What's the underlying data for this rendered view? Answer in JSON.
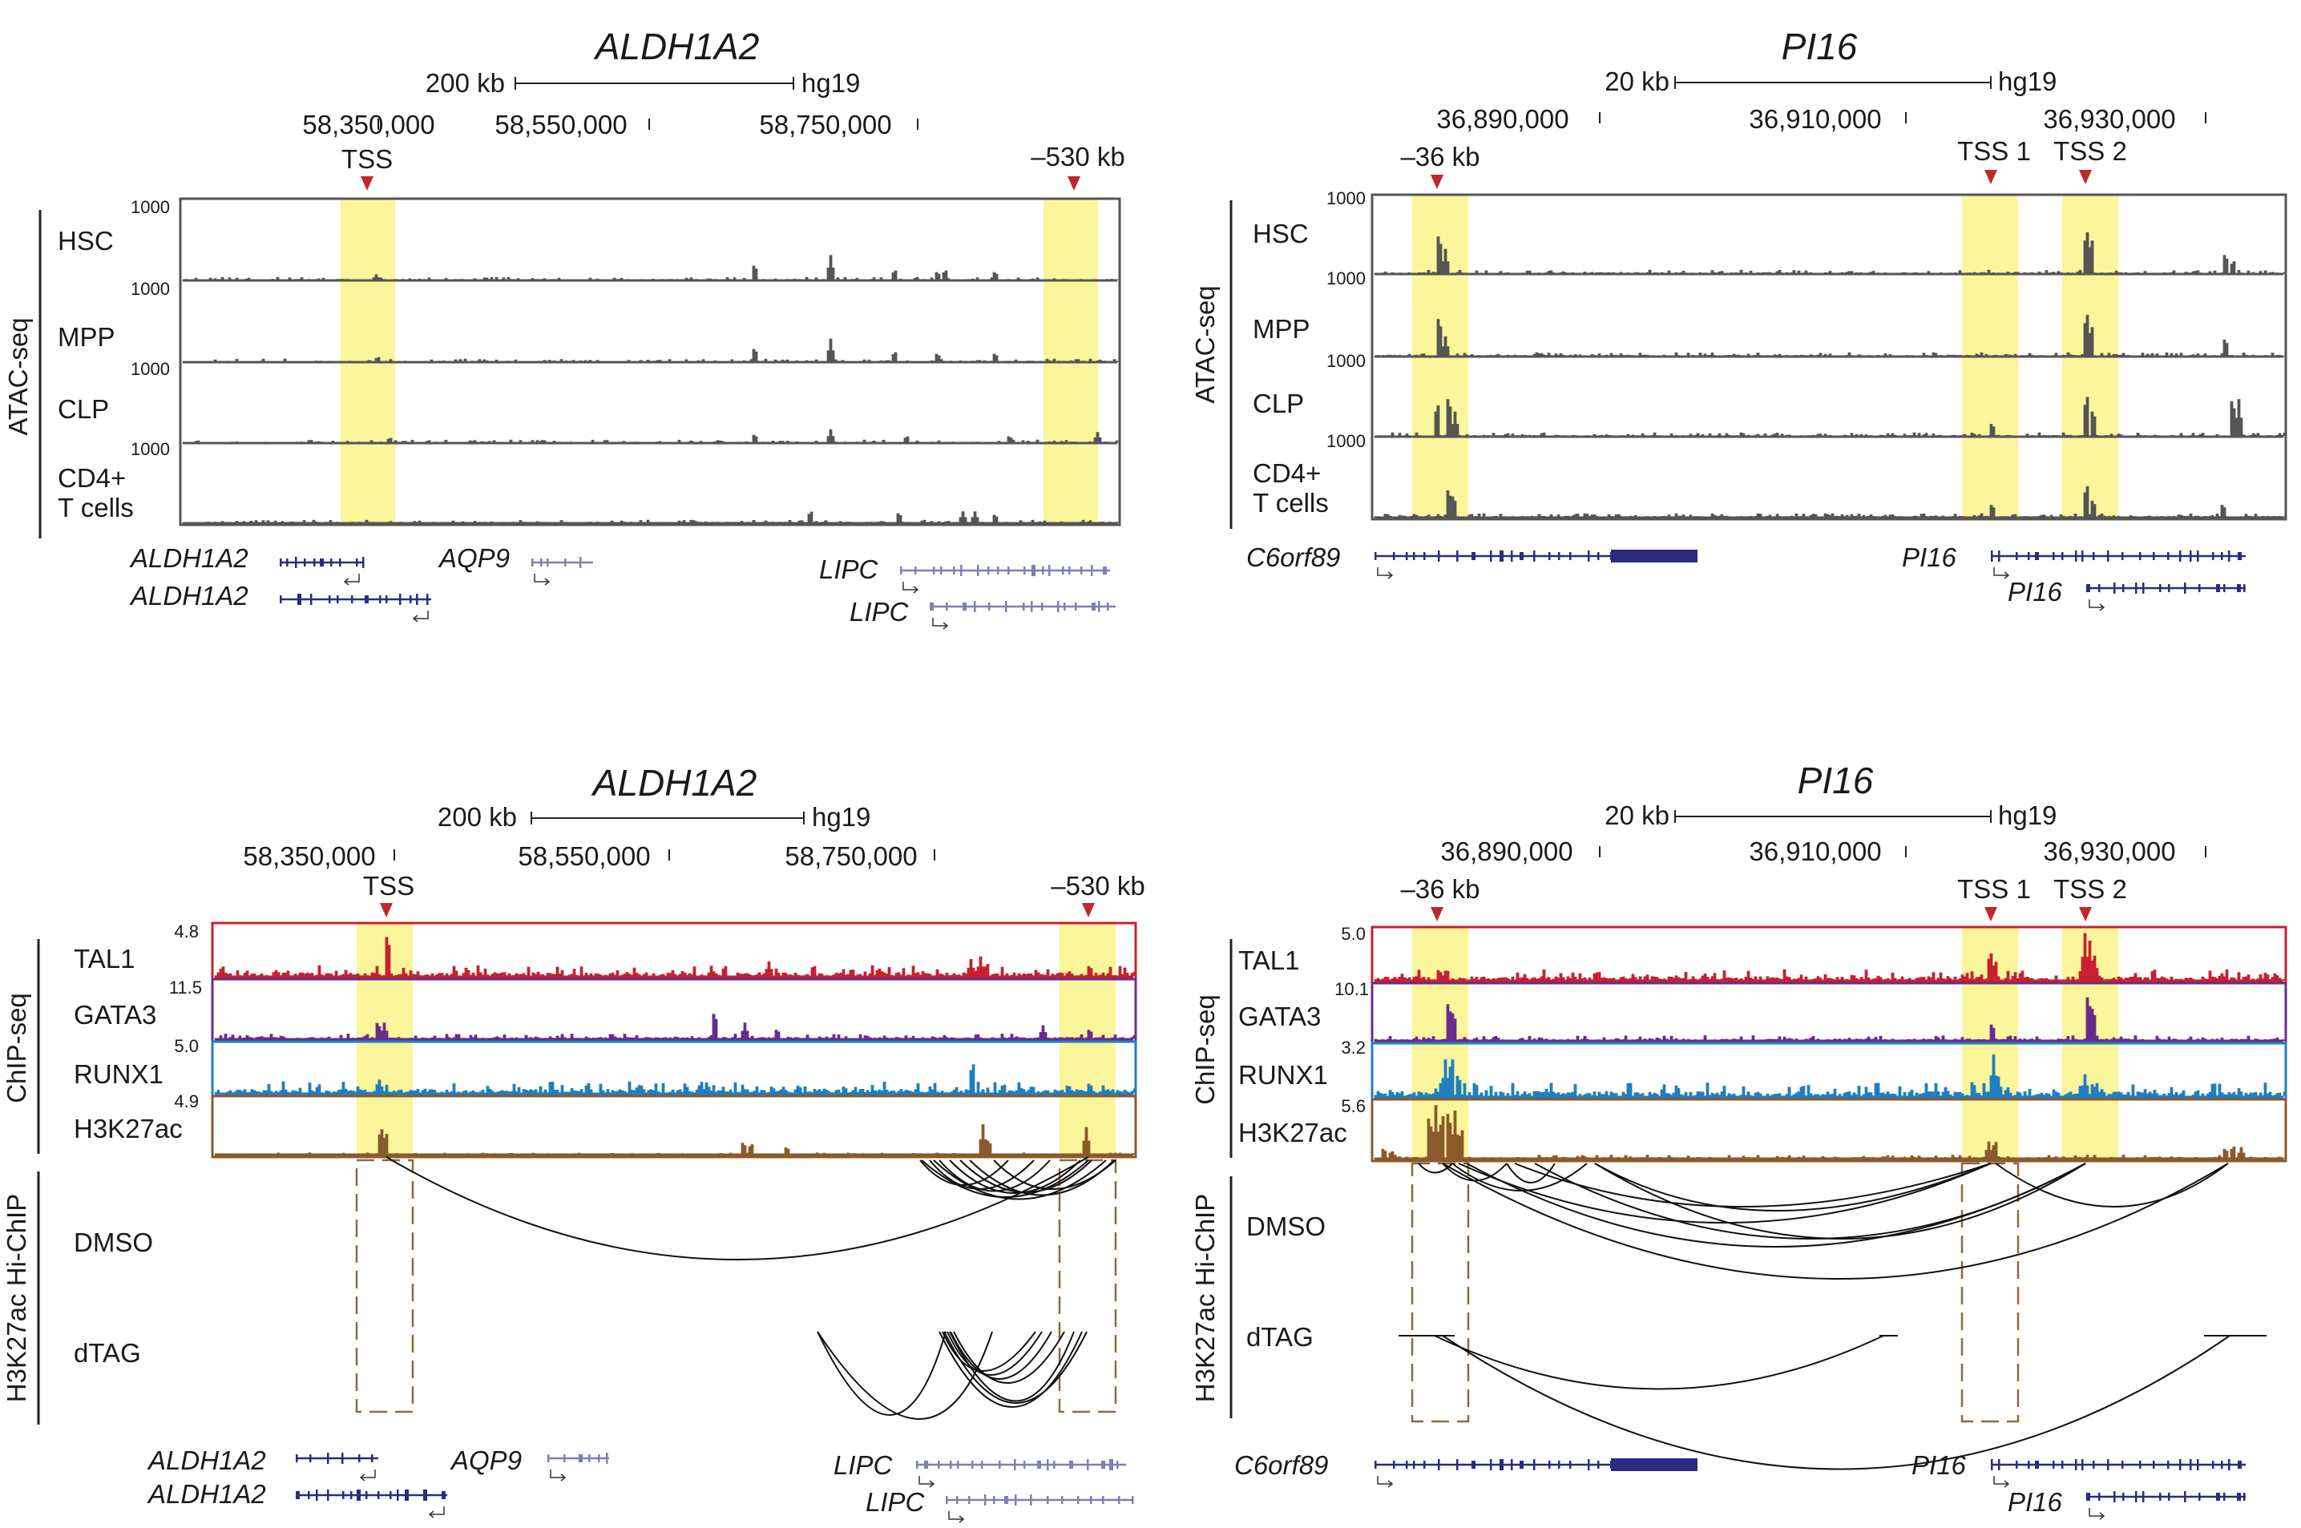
{
  "panels": [
    {
      "id": "tl",
      "title": "ALDH1A2",
      "scalebar": {
        "size": "200 kb",
        "genome": "hg19"
      },
      "coords": [
        "58,350,000",
        "58,550,000",
        "58,750,000"
      ],
      "markers": [
        "TSS",
        "–530 kb"
      ],
      "group_label": "ATAC-seq",
      "tracks": [
        {
          "name": "HSC",
          "scale": "1000"
        },
        {
          "name": "MPP",
          "scale": "1000"
        },
        {
          "name": "CLP",
          "scale": "1000"
        },
        {
          "name": "CD4+\nT cells",
          "scale": "1000"
        }
      ],
      "genes": [
        "ALDH1A2",
        "ALDH1A2",
        "AQP9",
        "LIPC",
        "LIPC"
      ]
    },
    {
      "id": "tr",
      "title": "PI16",
      "scalebar": {
        "size": "20 kb",
        "genome": "hg19"
      },
      "coords": [
        "36,890,000",
        "36,910,000",
        "36,930,000"
      ],
      "markers": [
        "–36 kb",
        "TSS 1",
        "TSS 2"
      ],
      "group_label": "ATAC-seq",
      "tracks": [
        {
          "name": "HSC",
          "scale": "1000"
        },
        {
          "name": "MPP",
          "scale": "1000"
        },
        {
          "name": "CLP",
          "scale": "1000"
        },
        {
          "name": "CD4+\nT cells",
          "scale": "1000"
        }
      ],
      "genes": [
        "C6orf89",
        "PI16",
        "PI16"
      ]
    },
    {
      "id": "bl",
      "title": "ALDH1A2",
      "scalebar": {
        "size": "200 kb",
        "genome": "hg19"
      },
      "coords": [
        "58,350,000",
        "58,550,000",
        "58,750,000"
      ],
      "markers": [
        "TSS",
        "–530 kb"
      ],
      "group_label": "ChIP-seq",
      "tracks": [
        {
          "name": "TAL1",
          "scale": "4.8"
        },
        {
          "name": "GATA3",
          "scale": "11.5"
        },
        {
          "name": "RUNX1",
          "scale": "5.0"
        },
        {
          "name": "H3K27ac",
          "scale": "4.9"
        }
      ],
      "hichip_label": "H3K27ac Hi-ChIP",
      "hichip_tracks": [
        "DMSO",
        "dTAG"
      ],
      "genes": [
        "ALDH1A2",
        "ALDH1A2",
        "AQP9",
        "LIPC",
        "LIPC"
      ]
    },
    {
      "id": "br",
      "title": "PI16",
      "scalebar": {
        "size": "20 kb",
        "genome": "hg19"
      },
      "coords": [
        "36,890,000",
        "36,910,000",
        "36,930,000"
      ],
      "markers": [
        "–36 kb",
        "TSS 1",
        "TSS 2"
      ],
      "group_label": "ChIP-seq",
      "tracks": [
        {
          "name": "TAL1",
          "scale": "5.0"
        },
        {
          "name": "GATA3",
          "scale": "10.1"
        },
        {
          "name": "RUNX1",
          "scale": "3.2"
        },
        {
          "name": "H3K27ac",
          "scale": "5.6"
        }
      ],
      "hichip_label": "H3K27ac Hi-ChIP",
      "hichip_tracks": [
        "DMSO",
        "dTAG"
      ],
      "genes": [
        "C6orf89",
        "PI16",
        "PI16"
      ]
    }
  ],
  "colors": {
    "highlight": "#fbf59b",
    "marker": "#c0272d",
    "atac": "#555555",
    "tal1": "#c8202f",
    "gata3": "#6a2c8c",
    "runx1": "#1f7fc1",
    "h3k27ac": "#8b5a2b",
    "gene": "#2b2b82",
    "dashed": "#8b6a45"
  }
}
